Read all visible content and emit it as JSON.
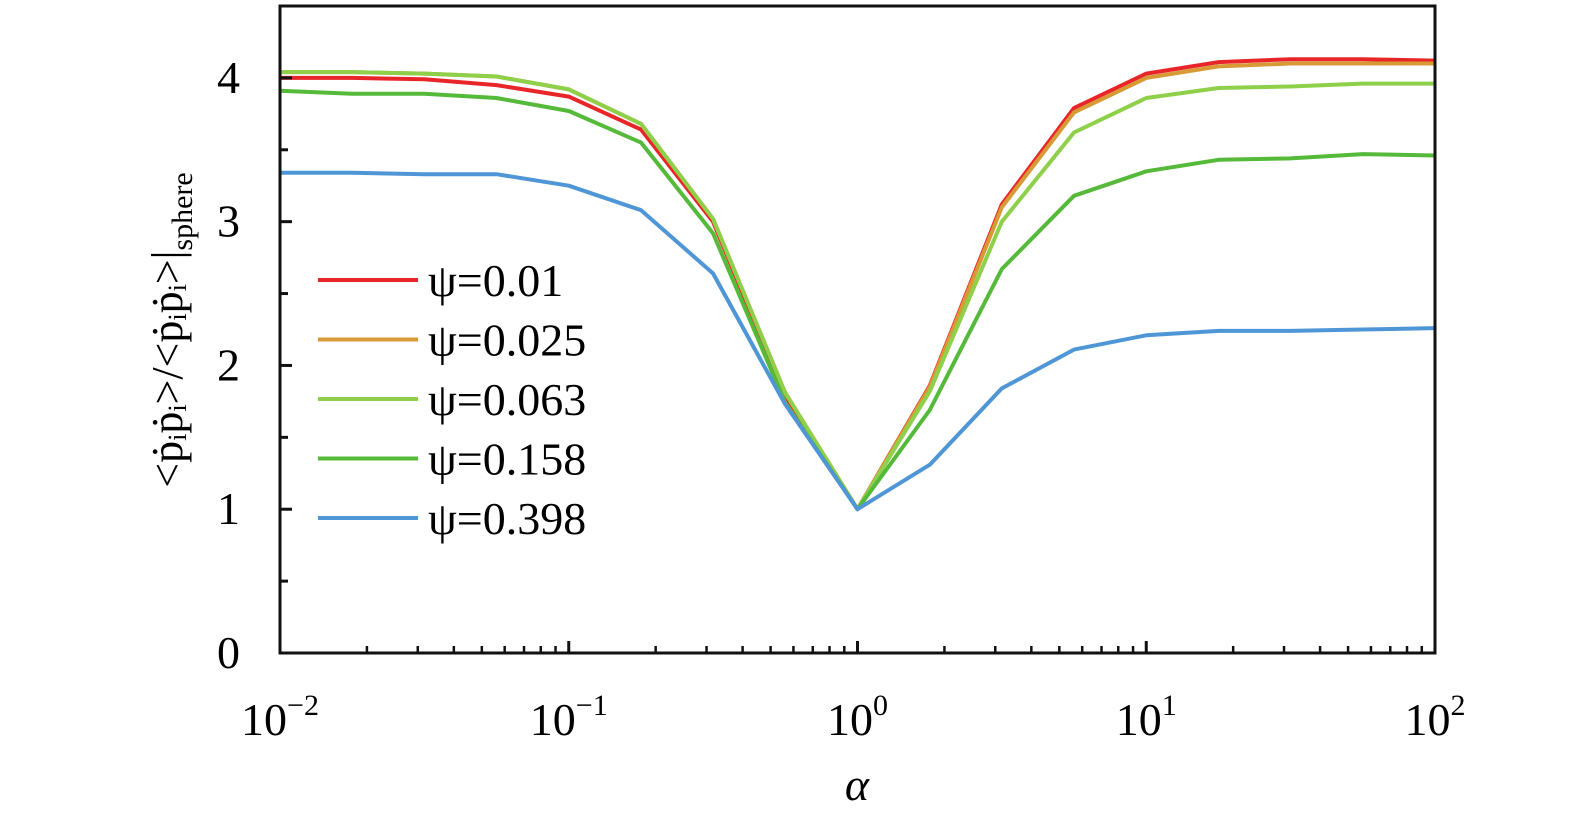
{
  "chart_data": {
    "type": "line",
    "title": "",
    "xlabel": "α",
    "ylabel": "<ṗᵢṗᵢ>/<ṗᵢṗᵢ>|",
    "ylabel_subscript": "sphere",
    "x_scale": "log",
    "xlim": [
      0.01,
      100
    ],
    "ylim": [
      0,
      4.5
    ],
    "grid": false,
    "legend_position": "center-left",
    "x_ticks": [
      {
        "base": "10",
        "exp": "−2",
        "value": 0.01
      },
      {
        "base": "10",
        "exp": "−1",
        "value": 0.1
      },
      {
        "base": "10",
        "exp": "0",
        "value": 1
      },
      {
        "base": "10",
        "exp": "1",
        "value": 10
      },
      {
        "base": "10",
        "exp": "2",
        "value": 100
      }
    ],
    "y_ticks": [
      "0",
      "1",
      "2",
      "3",
      "4"
    ],
    "x": [
      0.01,
      0.0178,
      0.0316,
      0.0562,
      0.1,
      0.178,
      0.316,
      0.562,
      1,
      1.78,
      3.16,
      5.62,
      10,
      17.8,
      31.6,
      56.2,
      100
    ],
    "series": [
      {
        "name": "ψ=0.01",
        "color": "#e8262a",
        "values": [
          4.0,
          4.0,
          3.99,
          3.95,
          3.87,
          3.64,
          3.0,
          1.79,
          1.0,
          1.86,
          3.12,
          3.79,
          4.03,
          4.11,
          4.13,
          4.13,
          4.12
        ]
      },
      {
        "name": "ψ=0.025",
        "color": "#d89a35",
        "values": [
          4.04,
          4.04,
          4.03,
          4.01,
          3.92,
          3.68,
          3.02,
          1.81,
          1.0,
          1.85,
          3.1,
          3.76,
          4.0,
          4.08,
          4.1,
          4.1,
          4.1
        ]
      },
      {
        "name": "ψ=0.063",
        "color": "#8ed04a",
        "values": [
          4.04,
          4.04,
          4.03,
          4.01,
          3.92,
          3.68,
          3.02,
          1.81,
          1.0,
          1.82,
          3.0,
          3.62,
          3.86,
          3.93,
          3.94,
          3.96,
          3.96
        ]
      },
      {
        "name": "ψ=0.158",
        "color": "#55b93a",
        "values": [
          3.91,
          3.89,
          3.89,
          3.86,
          3.77,
          3.55,
          2.92,
          1.74,
          1.0,
          1.69,
          2.67,
          3.18,
          3.35,
          3.43,
          3.44,
          3.47,
          3.46
        ]
      },
      {
        "name": "ψ=0.398",
        "color": "#4f96d6",
        "values": [
          3.34,
          3.34,
          3.33,
          3.33,
          3.25,
          3.08,
          2.64,
          1.73,
          1.0,
          1.31,
          1.84,
          2.11,
          2.21,
          2.24,
          2.24,
          2.25,
          2.26
        ]
      }
    ]
  }
}
